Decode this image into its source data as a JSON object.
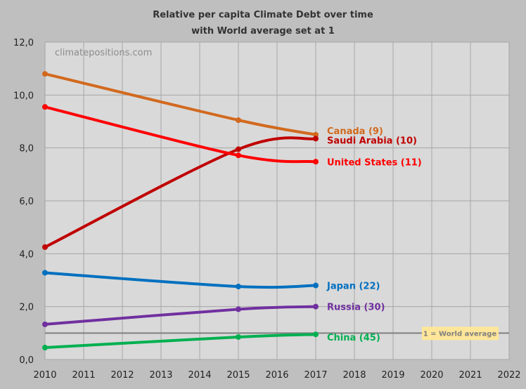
{
  "chart_data": {
    "type": "line",
    "title": "Relative per capita Climate Debt over time",
    "subtitle": "with World average set at 1",
    "watermark": "climatepositions.com",
    "x": [
      2010,
      2015,
      2017
    ],
    "xlim": [
      2010,
      2022
    ],
    "ylim": [
      0,
      12
    ],
    "xticks": [
      "2010",
      "2011",
      "2012",
      "2013",
      "2014",
      "2015",
      "2016",
      "2017",
      "2018",
      "2019",
      "2020",
      "2021",
      "2022"
    ],
    "yticks": [
      "0,0",
      "2,0",
      "4,0",
      "6,0",
      "8,0",
      "10,0",
      "12,0"
    ],
    "grid": true,
    "series": [
      {
        "name": "Canada (9)",
        "color": "#d2691e",
        "values": [
          10.8,
          9.05,
          8.5
        ]
      },
      {
        "name": "Saudi Arabia (10)",
        "color": "#c00000",
        "values": [
          4.25,
          7.95,
          8.35
        ]
      },
      {
        "name": "United States (11)",
        "color": "#ff0000",
        "values": [
          9.55,
          7.72,
          7.48
        ]
      },
      {
        "name": "Japan (22)",
        "color": "#0070c0",
        "values": [
          3.28,
          2.76,
          2.8
        ]
      },
      {
        "name": "Russia (30)",
        "color": "#7030a0",
        "values": [
          1.33,
          1.9,
          2.0
        ]
      },
      {
        "name": "China (45)",
        "color": "#00b050",
        "values": [
          0.45,
          0.85,
          0.95
        ]
      }
    ],
    "reference_line": {
      "value": 1,
      "label": "1 = World average",
      "color": "#808080",
      "label_bg": "#ffe699"
    }
  }
}
